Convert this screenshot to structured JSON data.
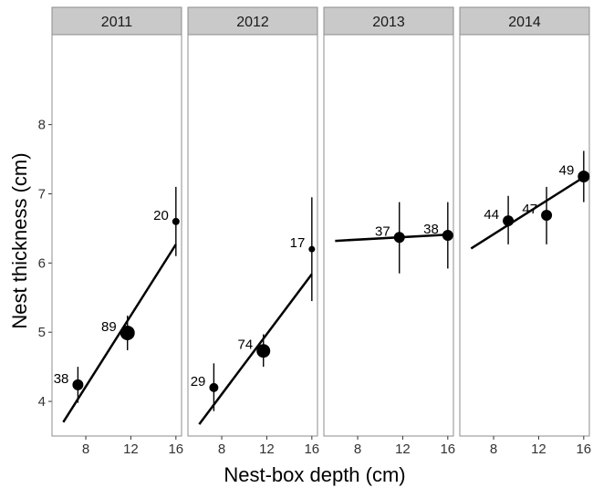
{
  "chart_data": {
    "type": "scatter",
    "xlabel": "Nest-box depth (cm)",
    "ylabel": "Nest thickness (cm)",
    "xlim": [
      5,
      16.5
    ],
    "ylim": [
      3.5,
      9.3
    ],
    "x_ticks": [
      8,
      12,
      16
    ],
    "y_ticks": [
      4,
      5,
      6,
      7,
      8
    ],
    "grid": false,
    "legend": "none",
    "point_color": "#000000",
    "strip_color": "#c9c9c9",
    "panels": [
      {
        "label": "2011",
        "points": [
          {
            "x": 7.3,
            "y": 4.24,
            "lo": 3.98,
            "hi": 4.5,
            "n": "38",
            "size": 6
          },
          {
            "x": 11.7,
            "y": 4.99,
            "lo": 4.74,
            "hi": 5.24,
            "n": "89",
            "size": 8
          },
          {
            "x": 16.0,
            "y": 6.6,
            "lo": 6.1,
            "hi": 7.1,
            "n": "20",
            "size": 4
          }
        ],
        "fit": {
          "x1": 6.0,
          "y1": 3.7,
          "x2": 16.0,
          "y2": 6.27
        }
      },
      {
        "label": "2012",
        "points": [
          {
            "x": 7.3,
            "y": 4.2,
            "lo": 3.86,
            "hi": 4.55,
            "n": "29",
            "size": 5
          },
          {
            "x": 11.7,
            "y": 4.73,
            "lo": 4.5,
            "hi": 4.97,
            "n": "74",
            "size": 7.5
          },
          {
            "x": 16.0,
            "y": 6.2,
            "lo": 5.45,
            "hi": 6.95,
            "n": "17",
            "size": 3.5
          }
        ],
        "fit": {
          "x1": 6.0,
          "y1": 3.67,
          "x2": 16.0,
          "y2": 5.84
        }
      },
      {
        "label": "2013",
        "points": [
          {
            "x": 11.7,
            "y": 6.37,
            "lo": 5.85,
            "hi": 6.88,
            "n": "37",
            "size": 6
          },
          {
            "x": 16.0,
            "y": 6.4,
            "lo": 5.92,
            "hi": 6.88,
            "n": "38",
            "size": 6
          }
        ],
        "fit": {
          "x1": 6.0,
          "y1": 6.32,
          "x2": 16.0,
          "y2": 6.41
        }
      },
      {
        "label": "2014",
        "points": [
          {
            "x": 9.3,
            "y": 6.61,
            "lo": 6.27,
            "hi": 6.97,
            "n": "44",
            "size": 6
          },
          {
            "x": 12.7,
            "y": 6.69,
            "lo": 6.27,
            "hi": 7.1,
            "n": "47",
            "size": 6
          },
          {
            "x": 16.0,
            "y": 7.25,
            "lo": 6.88,
            "hi": 7.62,
            "n": "49",
            "size": 6.5
          }
        ],
        "fit": {
          "x1": 6.0,
          "y1": 6.21,
          "x2": 16.0,
          "y2": 7.24
        }
      }
    ]
  }
}
